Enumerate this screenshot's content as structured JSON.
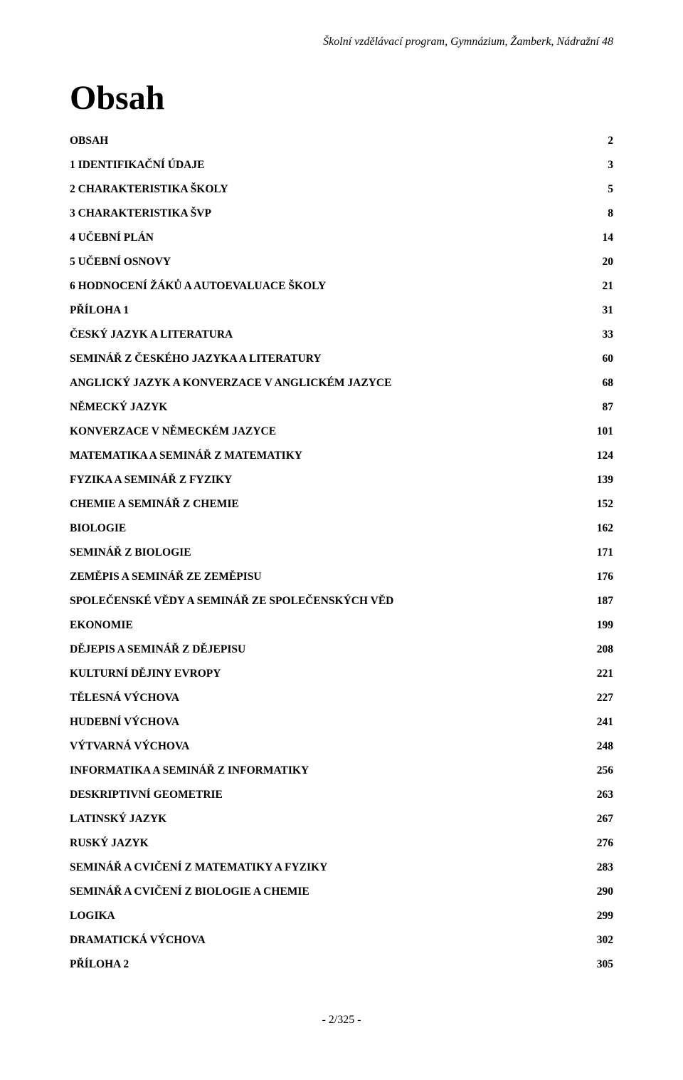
{
  "header": {
    "text": "Školní vzdělávací program, Gymnázium, Žamberk, Nádražní 48"
  },
  "title": "Obsah",
  "toc": [
    {
      "label": "OBSAH",
      "page": "2"
    },
    {
      "label": "1 IDENTIFIKAČNÍ ÚDAJE",
      "page": "3"
    },
    {
      "label": "2 CHARAKTERISTIKA ŠKOLY",
      "page": "5"
    },
    {
      "label": "3 CHARAKTERISTIKA ŠVP",
      "page": "8"
    },
    {
      "label": "4 UČEBNÍ PLÁN",
      "page": "14"
    },
    {
      "label": "5 UČEBNÍ OSNOVY",
      "page": "20"
    },
    {
      "label": "6 HODNOCENÍ ŽÁKŮ A AUTOEVALUACE ŠKOLY",
      "page": "21"
    },
    {
      "label": "PŘÍLOHA 1",
      "page": "31"
    },
    {
      "label": "ČESKÝ JAZYK A LITERATURA",
      "page": "33"
    },
    {
      "label": "SEMINÁŘ Z ČESKÉHO JAZYKA A LITERATURY",
      "page": "60"
    },
    {
      "label": "ANGLICKÝ JAZYK A KONVERZACE V ANGLICKÉM JAZYCE",
      "page": "68"
    },
    {
      "label": "NĚMECKÝ JAZYK",
      "page": "87"
    },
    {
      "label": "KONVERZACE V NĚMECKÉM JAZYCE",
      "page": "101"
    },
    {
      "label": "MATEMATIKA A SEMINÁŘ Z MATEMATIKY",
      "page": "124"
    },
    {
      "label": "FYZIKA A SEMINÁŘ Z FYZIKY",
      "page": "139"
    },
    {
      "label": "CHEMIE A SEMINÁŘ Z CHEMIE",
      "page": "152"
    },
    {
      "label": "BIOLOGIE",
      "page": "162"
    },
    {
      "label": "SEMINÁŘ Z BIOLOGIE",
      "page": "171"
    },
    {
      "label": "ZEMĚPIS A SEMINÁŘ ZE ZEMĚPISU",
      "page": "176"
    },
    {
      "label": "SPOLEČENSKÉ VĚDY A SEMINÁŘ ZE SPOLEČENSKÝCH VĚD",
      "page": "187"
    },
    {
      "label": "EKONOMIE",
      "page": "199"
    },
    {
      "label": "DĚJEPIS A SEMINÁŘ Z DĚJEPISU",
      "page": "208"
    },
    {
      "label": "KULTURNÍ DĚJINY EVROPY",
      "page": "221"
    },
    {
      "label": "TĚLESNÁ VÝCHOVA",
      "page": "227"
    },
    {
      "label": "HUDEBNÍ VÝCHOVA",
      "page": "241"
    },
    {
      "label": "VÝTVARNÁ VÝCHOVA",
      "page": "248"
    },
    {
      "label": "INFORMATIKA A SEMINÁŘ Z INFORMATIKY",
      "page": "256"
    },
    {
      "label": "DESKRIPTIVNÍ GEOMETRIE",
      "page": "263"
    },
    {
      "label": "LATINSKÝ JAZYK",
      "page": "267"
    },
    {
      "label": "RUSKÝ JAZYK",
      "page": "276"
    },
    {
      "label": "SEMINÁŘ A CVIČENÍ Z MATEMATIKY A FYZIKY",
      "page": "283"
    },
    {
      "label": "SEMINÁŘ A CVIČENÍ Z BIOLOGIE A CHEMIE",
      "page": "290"
    },
    {
      "label": "LOGIKA",
      "page": "299"
    },
    {
      "label": "DRAMATICKÁ VÝCHOVA",
      "page": "302"
    },
    {
      "label": "PŘÍLOHA 2",
      "page": "305"
    }
  ],
  "footer": {
    "text": "- 2/325 -"
  }
}
